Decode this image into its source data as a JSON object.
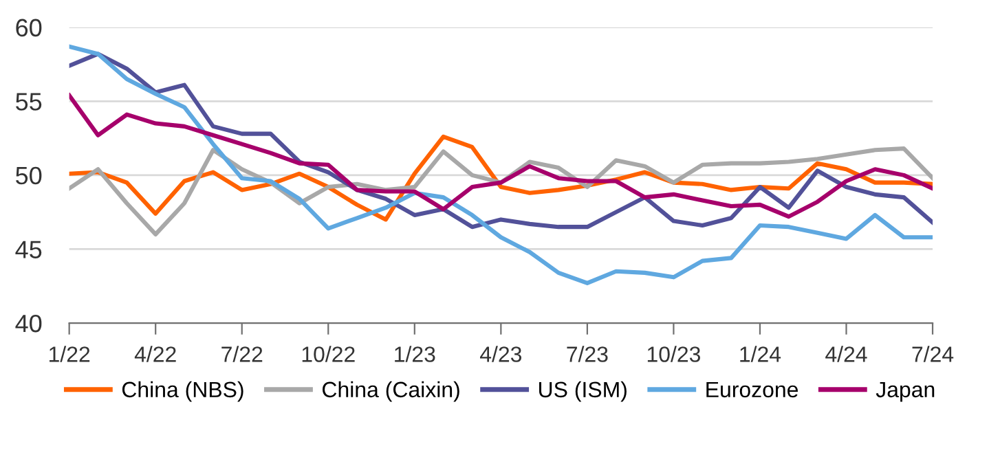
{
  "chart_data": {
    "type": "line",
    "categories": [
      "1/22",
      null,
      null,
      "4/22",
      null,
      null,
      "7/22",
      null,
      null,
      "10/22",
      null,
      null,
      "1/23",
      null,
      null,
      "4/23",
      null,
      null,
      "7/23",
      null,
      null,
      "10/23",
      null,
      null,
      "1/24",
      null,
      null,
      "4/24",
      null,
      null,
      "7/24"
    ],
    "series": [
      {
        "name": "China (NBS)",
        "color": "#ff6200",
        "values": [
          50.1,
          50.2,
          49.5,
          47.4,
          49.6,
          50.2,
          49.0,
          49.4,
          50.1,
          49.2,
          48.0,
          47.0,
          50.1,
          52.6,
          51.9,
          49.2,
          48.8,
          49.0,
          49.3,
          49.7,
          50.2,
          49.5,
          49.4,
          49.0,
          49.2,
          49.1,
          50.8,
          50.4,
          49.5,
          49.5,
          49.4
        ]
      },
      {
        "name": "China (Caixin)",
        "color": "#a8a8a8",
        "values": [
          49.1,
          50.4,
          48.1,
          46.0,
          48.1,
          51.7,
          50.4,
          49.5,
          48.1,
          49.2,
          49.4,
          49.0,
          49.2,
          51.6,
          50.0,
          49.5,
          50.9,
          50.5,
          49.2,
          51.0,
          50.6,
          49.5,
          50.7,
          50.8,
          50.8,
          50.9,
          51.1,
          51.4,
          51.7,
          51.8,
          49.8
        ]
      },
      {
        "name": "US (ISM)",
        "color": "#525199",
        "values": [
          57.4,
          58.2,
          57.2,
          55.6,
          56.1,
          53.3,
          52.8,
          52.8,
          50.9,
          50.2,
          49.0,
          48.4,
          47.3,
          47.7,
          46.5,
          47.0,
          46.7,
          46.5,
          46.5,
          47.5,
          48.5,
          46.9,
          46.6,
          47.1,
          49.2,
          47.8,
          50.3,
          49.2,
          48.7,
          48.5,
          46.8
        ]
      },
      {
        "name": "Eurozone",
        "color": "#5fa8e0",
        "values": [
          58.7,
          58.2,
          56.5,
          55.5,
          54.6,
          52.1,
          49.8,
          49.6,
          48.4,
          46.4,
          47.1,
          47.8,
          48.8,
          48.5,
          47.3,
          45.8,
          44.8,
          43.4,
          42.7,
          43.5,
          43.4,
          43.1,
          44.2,
          44.4,
          46.6,
          46.5,
          46.1,
          45.7,
          47.3,
          45.8,
          45.8
        ]
      },
      {
        "name": "Japan",
        "color": "#a6006b",
        "values": [
          55.4,
          52.7,
          54.1,
          53.5,
          53.3,
          52.7,
          52.1,
          51.5,
          50.8,
          50.7,
          49.0,
          48.9,
          48.9,
          47.7,
          49.2,
          49.5,
          50.6,
          49.8,
          49.6,
          49.6,
          48.5,
          48.7,
          48.3,
          47.9,
          48.0,
          47.2,
          48.2,
          49.6,
          50.4,
          50.0,
          49.1
        ]
      }
    ],
    "ylim": [
      40,
      60
    ],
    "yticks": [
      40,
      45,
      50,
      55,
      60
    ],
    "grid": "y",
    "legend": "bottom",
    "marker": "none",
    "line_style": "solid"
  }
}
